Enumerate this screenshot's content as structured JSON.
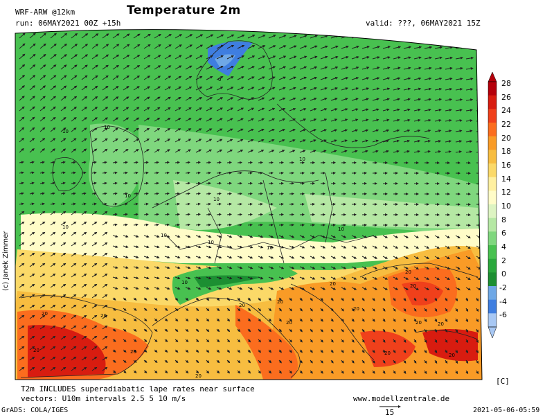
{
  "header": {
    "model": "WRF-ARW @12km",
    "title": "Temperature 2m",
    "run": "run: 06MAY2021 00Z +15h",
    "valid": "valid: ???, 06MAY2021 15Z"
  },
  "footer": {
    "note1": "T2m INCLUDES superadiabatic lape rates near surface",
    "note2": "vectors: U10m intervals 2.5 5 10 m/s",
    "website": "www.modellzentrale.de",
    "grads": "GrADS: COLA/IGES",
    "timestamp": "2021-05-06-05:59",
    "unit": "[C]",
    "ref_vector": "15",
    "copyright": "(c) Janek Zimmer"
  },
  "colorbar": {
    "levels": [
      "28",
      "26",
      "24",
      "22",
      "20",
      "18",
      "16",
      "14",
      "12",
      "10",
      "8",
      "6",
      "4",
      "2",
      "0",
      "-2",
      "-4",
      "-6"
    ],
    "colors": [
      "#b5000b",
      "#d81c10",
      "#f0401b",
      "#fb6d1e",
      "#f99b26",
      "#f7bd40",
      "#fbd968",
      "#fff0a0",
      "#fffcc8",
      "#ddf4c2",
      "#b5e8a4",
      "#7fd77e",
      "#48c150",
      "#2aa83c",
      "#1c8f32",
      "#6fa8e6",
      "#3f7ee0",
      "#a8c8f4"
    ]
  },
  "map": {
    "isotherm_labels": [
      "10",
      "10",
      "10",
      "10",
      "10",
      "10",
      "10",
      "10",
      "10",
      "10",
      "10",
      "20",
      "20",
      "20",
      "20",
      "20",
      "20",
      "20",
      "20",
      "20",
      "20",
      "20",
      "20",
      "20",
      "20",
      "20",
      "20",
      "0"
    ]
  }
}
